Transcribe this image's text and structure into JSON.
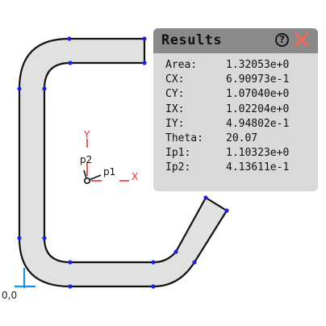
{
  "canvas": {
    "origin_label": "0,0",
    "axes": {
      "x_label": "X",
      "y_label": "Y",
      "p1_label": "p1",
      "p2_label": "p2"
    }
  },
  "results": {
    "title": "Results",
    "help_icon": "?",
    "close_icon": "close-x",
    "rows": [
      {
        "label": "Area:",
        "value": "1.32053e+0"
      },
      {
        "label": "CX:",
        "value": "6.90973e-1"
      },
      {
        "label": "CY:",
        "value": "1.07040e+0"
      },
      {
        "label": "IX:",
        "value": "1.02204e+0"
      },
      {
        "label": "IY:",
        "value": "4.94802e-1"
      },
      {
        "label": "Theta:",
        "value": "20.07"
      },
      {
        "label": "Ip1:",
        "value": "1.10323e+0"
      },
      {
        "label": "Ip2:",
        "value": "4.13611e-1"
      }
    ]
  },
  "colors": {
    "shape_fill": "#e1e1e1",
    "shape_stroke": "#111111",
    "vertex": "#1f1fe0",
    "origin_axis": "#1e8fe0",
    "principal_axis": "#e33030",
    "panel_bg": "#d9d9d9",
    "panel_header": "#8a8a8a",
    "close": "#f06a5a"
  }
}
